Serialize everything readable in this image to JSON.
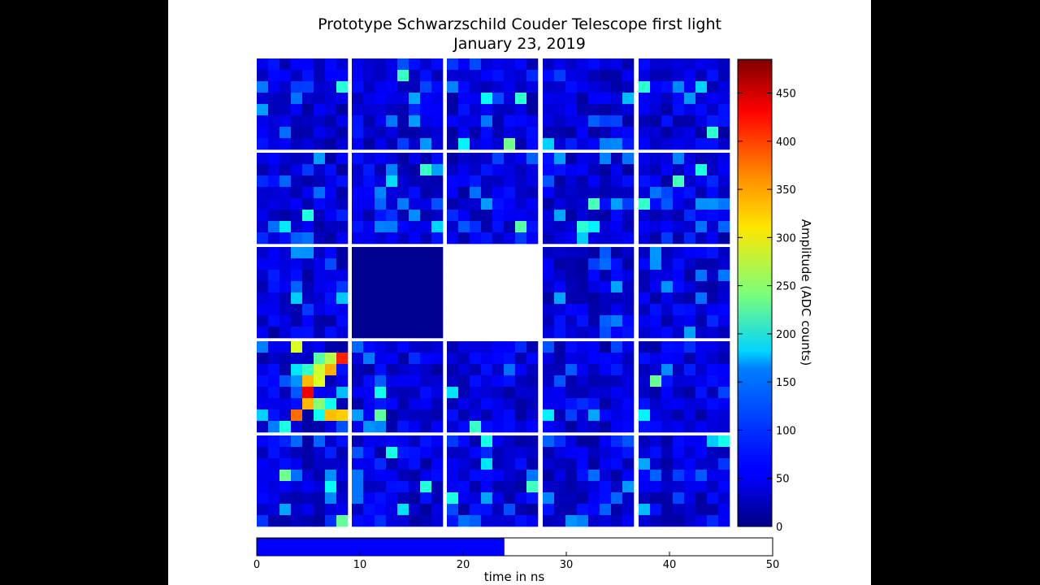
{
  "figure": {
    "title_line1": "Prototype Schwarzschild Couder Telescope first light",
    "title_line2": "January 23, 2019"
  },
  "chart_data": [
    {
      "type": "heatmap",
      "title": "Prototype Schwarzschild Couder Telescope first light January 23, 2019",
      "grid": "5x5 modules, 8x8 pixels each; row 3 col 2 module shows uniform low value; row 3 col 3 module absent",
      "colormap": "jet",
      "hotspot_module": {
        "row": 4,
        "col": 1,
        "peak_values": [
          400,
          420,
          460,
          380,
          300,
          250
        ]
      },
      "colorbar": {
        "label": "Amplitude (ADC counts)",
        "range": [
          0,
          485
        ],
        "ticks": [
          0,
          50,
          100,
          150,
          200,
          250,
          300,
          350,
          400,
          450
        ],
        "tick_labels": [
          "0",
          "50",
          "100",
          "150",
          "200",
          "250",
          "300",
          "350",
          "400",
          "450"
        ]
      }
    },
    {
      "type": "bar",
      "orientation": "horizontal",
      "xlabel": "time in ns",
      "xlim": [
        0,
        50
      ],
      "value": 24,
      "bar_color": "#0000ff",
      "ticks": [
        0,
        10,
        20,
        30,
        40,
        50
      ],
      "tick_labels": [
        "0",
        "10",
        "20",
        "30",
        "40",
        "50"
      ]
    }
  ]
}
